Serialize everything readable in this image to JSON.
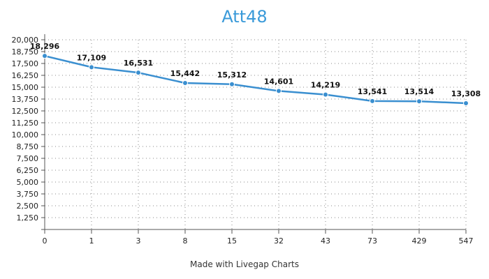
{
  "chart_data": {
    "type": "line",
    "title": "Att48",
    "credit": "Made with Livegap Charts",
    "categories": [
      "0",
      "1",
      "3",
      "8",
      "15",
      "32",
      "43",
      "73",
      "429",
      "547"
    ],
    "series": [
      {
        "values": [
          18296,
          17109,
          16531,
          15442,
          15312,
          14601,
          14219,
          13541,
          13514,
          13308
        ],
        "value_labels": [
          "18,296",
          "17,109",
          "16,531",
          "15,442",
          "15,312",
          "14,601",
          "14,219",
          "13,541",
          "13,514",
          "13,308"
        ]
      }
    ],
    "ylim": [
      0,
      20000
    ],
    "yticks": [
      1250,
      2500,
      3750,
      5000,
      6250,
      7500,
      8750,
      10000,
      11250,
      12500,
      13750,
      15000,
      16250,
      17500,
      18750,
      20000
    ],
    "ytick_labels": [
      "1,250",
      "2,500",
      "3,750",
      "5,000",
      "6,250",
      "7,500",
      "8,750",
      "10,000",
      "11,250",
      "12,500",
      "13,750",
      "15,000",
      "16,250",
      "17,500",
      "18,750",
      "20,000"
    ],
    "grid": true,
    "colors": {
      "line": "#3a8fd0",
      "title": "#3a9ad9"
    }
  }
}
